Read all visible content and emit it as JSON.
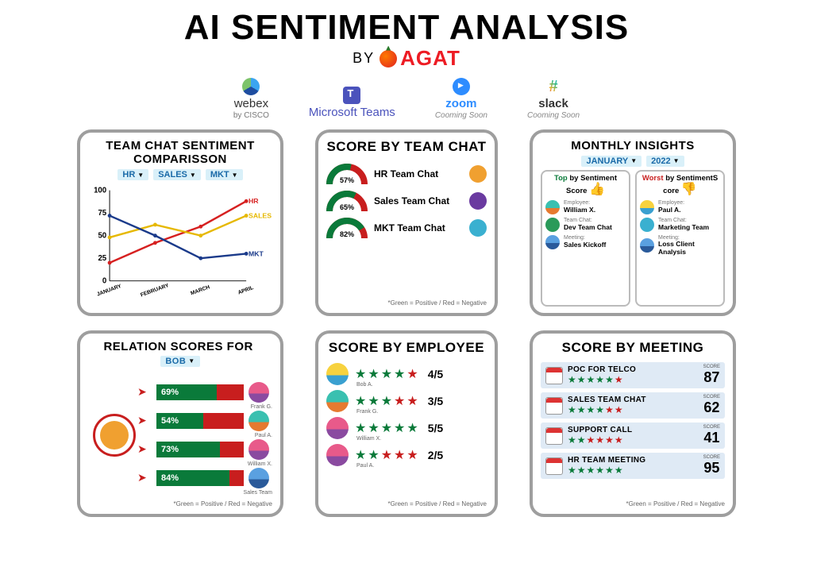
{
  "title": "AI SENTIMENT ANALYSIS",
  "subtitle_by": "BY",
  "brand": "AGAT",
  "platforms": [
    {
      "name": "webex",
      "sub": "by CISCO",
      "soon": ""
    },
    {
      "name": "Microsoft Teams",
      "sub": "",
      "soon": ""
    },
    {
      "name": "zoom",
      "sub": "",
      "soon": "Cooming Soon"
    },
    {
      "name": "slack",
      "sub": "",
      "soon": "Cooming Soon"
    }
  ],
  "colors": {
    "positive": "#0a7a3a",
    "negative": "#c81e1e",
    "card_border": "#9e9e9e",
    "dd_bg": "#d9f0f9",
    "dd_text": "#1a6aa8",
    "mtg_row_bg": "#dfeaf5"
  },
  "foot_note": "*Green = Positive / Red = Negative",
  "line_chart": {
    "title": "TEAM CHAT SENTIMENT COMPARISSON",
    "filters": [
      "HR",
      "SALES",
      "MKT"
    ],
    "y_ticks": [
      0,
      25,
      50,
      75,
      100
    ],
    "ylim": [
      0,
      100
    ],
    "x_categories": [
      "JANUARY",
      "FEBRUARY",
      "MARCH",
      "APRIL"
    ],
    "series": [
      {
        "name": "HR",
        "color": "#d62020",
        "values": [
          20,
          42,
          60,
          88
        ]
      },
      {
        "name": "SALES",
        "color": "#e6b800",
        "values": [
          48,
          62,
          50,
          72
        ]
      },
      {
        "name": "MKT",
        "color": "#1a3a8a",
        "values": [
          72,
          50,
          25,
          30
        ]
      }
    ]
  },
  "score_team": {
    "title": "SCORE BY TEAM CHAT",
    "rows": [
      {
        "pct": 57,
        "label": "HR Team Chat",
        "chip": "#f0a030"
      },
      {
        "pct": 65,
        "label": "Sales Team Chat",
        "chip": "#6a3aa0"
      },
      {
        "pct": 82,
        "label": "MKT Team Chat",
        "chip": "#3ab0d0"
      }
    ]
  },
  "monthly": {
    "title": "MONTHLY INSIGHTS",
    "month": "JANUARY",
    "year": "2022",
    "top": {
      "head": "Top by Sentiment Score",
      "thumb": "👍",
      "thumb_color": "#0a7a3a",
      "items": [
        {
          "lab": "Employee:",
          "val": "William X.",
          "cls": "av-teal"
        },
        {
          "lab": "Team Chat:",
          "val": "Dev Team Chat",
          "cls": "av-green"
        },
        {
          "lab": "Meeting:",
          "val": "Sales Kickoff",
          "cls": "av-blue"
        }
      ]
    },
    "worst": {
      "head": "Worst by SentimentS core",
      "thumb": "👎",
      "thumb_color": "#c81e1e",
      "items": [
        {
          "lab": "Employee:",
          "val": "Paul A.",
          "cls": "av-yellow"
        },
        {
          "lab": "Team Chat:",
          "val": "Marketing Team",
          "cls": "av-cyan"
        },
        {
          "lab": "Meeting:",
          "val": "Loss Client Analysis",
          "cls": "av-blue"
        }
      ]
    }
  },
  "relation": {
    "title": "RELATION SCORES FOR",
    "subject": "BOB",
    "bars": [
      {
        "pct": 69,
        "name": "Frank G.",
        "cls": "av-pink"
      },
      {
        "pct": 54,
        "name": "Paul A.",
        "cls": "av-teal"
      },
      {
        "pct": 73,
        "name": "William X.",
        "cls": "av-pink"
      },
      {
        "pct": 84,
        "name": "Sales Team",
        "cls": "av-blue"
      }
    ],
    "bar_total_width": 110
  },
  "emp": {
    "title": "SCORE BY EMPLOYEE",
    "rows": [
      {
        "name": "Bob A.",
        "stars": 4,
        "total": 5,
        "cls": "av-yellow"
      },
      {
        "name": "Frank G.",
        "stars": 3,
        "total": 5,
        "cls": "av-teal"
      },
      {
        "name": "William X.",
        "stars": 5,
        "total": 5,
        "cls": "av-pink"
      },
      {
        "name": "Paul A.",
        "stars": 2,
        "total": 5,
        "cls": "av-pink"
      }
    ]
  },
  "mtg": {
    "title": "SCORE BY MEETING",
    "rows": [
      {
        "name": "POC FOR TELCO",
        "stars": 5,
        "total": 6,
        "score": 87
      },
      {
        "name": "SALES TEAM CHAT",
        "stars": 4,
        "total": 6,
        "score": 62
      },
      {
        "name": "SUPPORT CALL",
        "stars": 2,
        "total": 6,
        "score": 41
      },
      {
        "name": "HR TEAM MEETING",
        "stars": 6,
        "total": 6,
        "score": 95
      }
    ],
    "score_label": "SCORE"
  }
}
